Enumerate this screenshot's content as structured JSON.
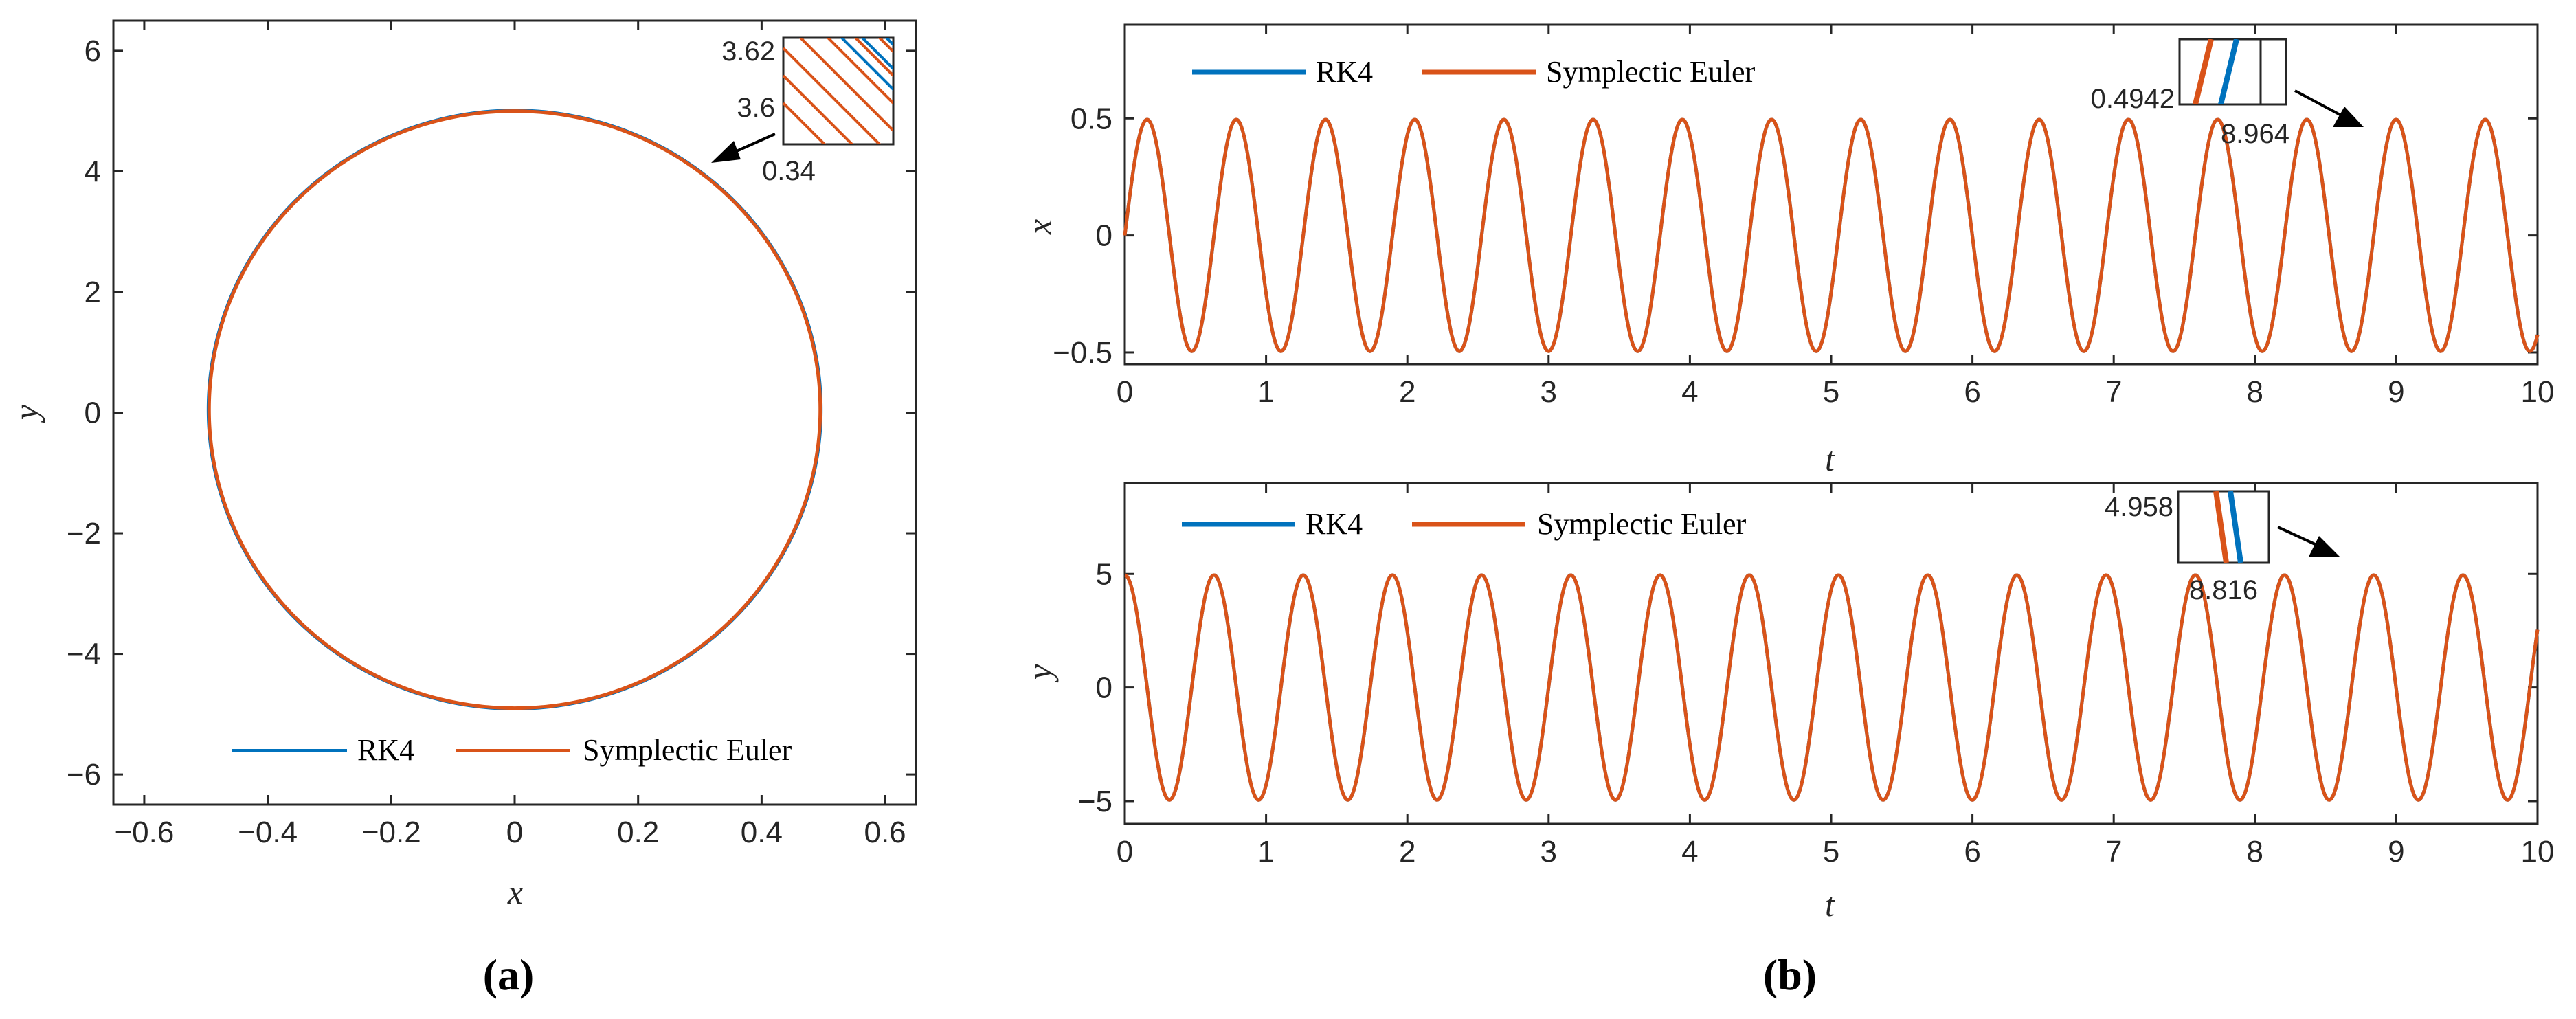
{
  "colors": {
    "rk4": "#0072BD",
    "euler": "#D95319",
    "axis": "#262626"
  },
  "panels": {
    "a": "(a)",
    "b": "(b)"
  },
  "legend": {
    "rk4": "RK4",
    "euler": "Symplectic Euler"
  },
  "chart_data": [
    {
      "id": "phase",
      "type": "line",
      "title": "",
      "xlabel": "x",
      "ylabel": "y",
      "xlim": [
        -0.65,
        0.65
      ],
      "ylim": [
        -6.5,
        6.5
      ],
      "xticks": [
        -0.6,
        -0.4,
        -0.2,
        0,
        0.2,
        0.4,
        0.6
      ],
      "xtick_labels": [
        "−0.6",
        "−0.4",
        "−0.2",
        "0",
        "0.2",
        "0.4",
        "0.6"
      ],
      "yticks": [
        -6,
        -4,
        -2,
        0,
        2,
        4,
        6
      ],
      "ytick_labels": [
        "−6",
        "−4",
        "−2",
        "0",
        "2",
        "4",
        "6"
      ],
      "series": [
        {
          "name": "RK4",
          "kind": "ellipse",
          "center": [
            0,
            0.05
          ],
          "rx": 0.496,
          "ry": 4.96
        },
        {
          "name": "Symplectic Euler",
          "kind": "ellipse",
          "center": [
            0,
            0.05
          ],
          "rx": 0.495,
          "ry": 4.95
        }
      ],
      "inset": {
        "xlabel": "0.34",
        "ytick_labels": [
          "3.62",
          "3.6"
        ],
        "arrow_target": [
          0.34,
          3.6
        ]
      }
    },
    {
      "id": "x-vs-t",
      "type": "line",
      "xlabel": "t",
      "ylabel": "x",
      "xlim": [
        0,
        10
      ],
      "ylim": [
        -0.55,
        0.9
      ],
      "xticks": [
        0,
        1,
        2,
        3,
        4,
        5,
        6,
        7,
        8,
        9,
        10
      ],
      "xtick_labels": [
        "0",
        "1",
        "2",
        "3",
        "4",
        "5",
        "6",
        "7",
        "8",
        "9",
        "10"
      ],
      "yticks": [
        -0.5,
        0,
        0.5
      ],
      "ytick_labels": [
        "−0.5",
        "0",
        "0.5"
      ],
      "series": [
        {
          "name": "RK4",
          "function": "sin",
          "amplitude": 0.495,
          "omega": 9.95,
          "phase": 0
        },
        {
          "name": "Symplectic Euler",
          "function": "sin",
          "amplitude": 0.495,
          "omega": 9.95,
          "phase": 0
        }
      ],
      "inset": {
        "ylabel": "0.4942",
        "xlabel": "8.964",
        "arrow_target": [
          8.964,
          0.4942
        ]
      }
    },
    {
      "id": "y-vs-t",
      "type": "line",
      "xlabel": "t",
      "ylabel": "y",
      "xlim": [
        0,
        10
      ],
      "ylim": [
        -6,
        9
      ],
      "xticks": [
        0,
        1,
        2,
        3,
        4,
        5,
        6,
        7,
        8,
        9,
        10
      ],
      "xtick_labels": [
        "0",
        "1",
        "2",
        "3",
        "4",
        "5",
        "6",
        "7",
        "8",
        "9",
        "10"
      ],
      "yticks": [
        -5,
        0,
        5
      ],
      "ytick_labels": [
        "−5",
        "0",
        "5"
      ],
      "series": [
        {
          "name": "RK4",
          "function": "cos",
          "amplitude": 4.95,
          "omega": 9.95,
          "phase": 0
        },
        {
          "name": "Symplectic Euler",
          "function": "cos",
          "amplitude": 4.95,
          "omega": 9.95,
          "phase": 0
        }
      ],
      "inset": {
        "ylabel": "4.958",
        "xlabel": "8.816",
        "arrow_target": [
          8.816,
          4.958
        ]
      }
    }
  ]
}
